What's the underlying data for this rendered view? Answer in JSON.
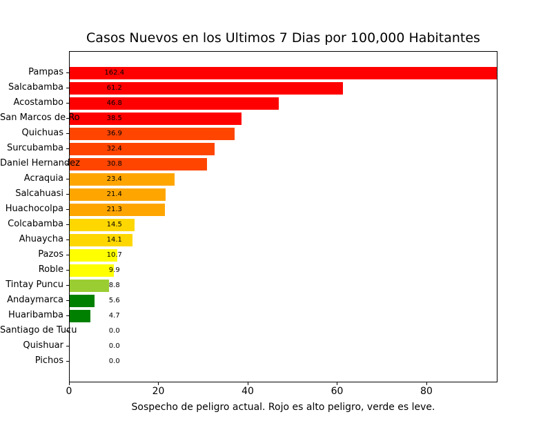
{
  "colors": {
    "background": "#ffffff",
    "text": "#000000",
    "axis": "#000000",
    "high_danger": "#ff0000",
    "low_danger": "#008000"
  },
  "chart_data": {
    "type": "bar",
    "orientation": "horizontal",
    "title": "Casos Nuevos en los Ultimos 7 Dias por 100,000 Habitantes",
    "xlabel": "Sospecho de peligro actual. Rojo es alto peligro, verde es leve.",
    "ylabel": "",
    "xlim": [
      0,
      95.9
    ],
    "xticks": [
      0,
      20,
      40,
      60,
      80
    ],
    "grid": false,
    "legend": "none",
    "value_label_x": 10,
    "categories": [
      "Pampas",
      "Salcabamba",
      "Acostambo",
      "San Marcos de Ro",
      "Quichuas",
      "Surcubamba",
      "Daniel Hernandez",
      "Acraquia",
      "Salcahuasi",
      "Huachocolpa",
      "Colcabamba",
      "Ahuaycha",
      "Pazos",
      "Roble",
      "Tintay Puncu",
      "Andaymarca",
      "Huaribamba",
      "Santiago de Tucu",
      "Quishuar",
      "Pichos"
    ],
    "values": [
      162.4,
      61.2,
      46.8,
      38.5,
      36.9,
      32.4,
      30.8,
      23.4,
      21.4,
      21.3,
      14.5,
      14.1,
      10.7,
      9.9,
      8.8,
      5.6,
      4.7,
      0.0,
      0.0,
      0.0
    ],
    "bar_colors": [
      "#ff0000",
      "#ff0000",
      "#ff0000",
      "#ff0000",
      "#ff4500",
      "#ff4500",
      "#ff4500",
      "#ffa500",
      "#ffa500",
      "#ffa500",
      "#ffd700",
      "#ffd700",
      "#ffff00",
      "#ffff00",
      "#9acd32",
      "#008000",
      "#008000",
      "#008000",
      "#008000",
      "#008000"
    ],
    "note": "Pampas bar (162.4) is clipped at the right edge of the plot"
  }
}
